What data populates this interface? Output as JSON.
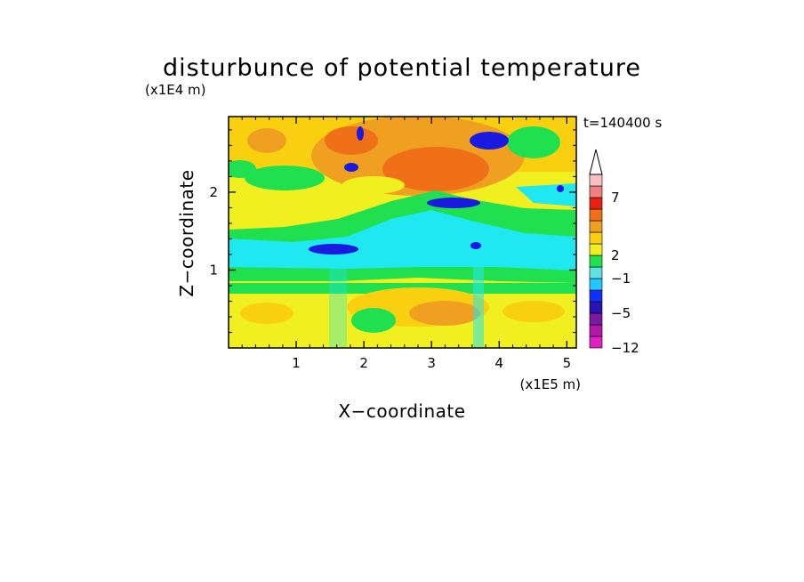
{
  "chart_data": {
    "type": "heatmap",
    "title": "disturbunce of potential temperature",
    "time_label": "t=140400 s",
    "xlabel": "X−coordinate",
    "ylabel": "Z−coordinate",
    "x_unit": "(x1E5 m)",
    "y_unit": "(x1E4 m)",
    "xlim": [
      0,
      5.14
    ],
    "ylim": [
      0,
      2.97
    ],
    "x_ticks": [
      "1",
      "2",
      "3",
      "4",
      "5"
    ],
    "x_tick_values": [
      1,
      2,
      3,
      4,
      5
    ],
    "y_ticks": [
      "1",
      "2"
    ],
    "y_tick_values": [
      1,
      2
    ],
    "colorbar": {
      "colors": [
        "#e020c0",
        "#b01aa8",
        "#7a1aa0",
        "#2a14b0",
        "#1030ff",
        "#20c8ff",
        "#60e0e0",
        "#20e050",
        "#f0f020",
        "#f8d010",
        "#f0a020",
        "#f07018",
        "#e82010",
        "#f08080",
        "#f8c0c0"
      ],
      "levels": [
        -12,
        -5,
        -1,
        2,
        7
      ],
      "level_labels": [
        "−12",
        "−5",
        "−1",
        "2",
        "7"
      ],
      "extend": "max"
    },
    "field_colors": {
      "yellow": "#f0f020",
      "light_orange": "#f8d010",
      "orange": "#f0a020",
      "red_orange": "#f07018",
      "green": "#20e050",
      "cyan": "#20e8f0",
      "blue": "#1a1ae0",
      "light_blue": "#2060ff"
    }
  }
}
